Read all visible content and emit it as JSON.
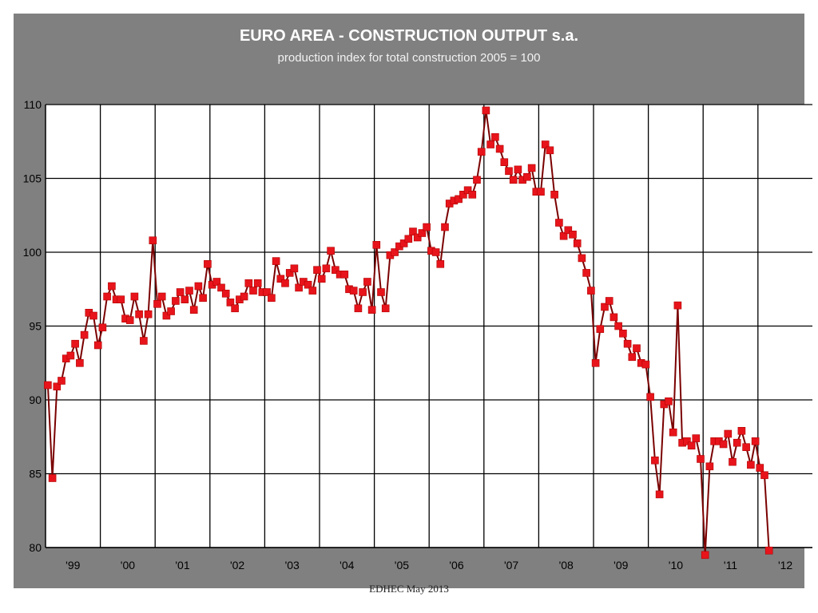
{
  "chart_data": {
    "type": "line",
    "title": "EURO AREA -  CONSTRUCTION OUTPUT  s.a.",
    "subtitle": "production index for total construction   2005 = 100",
    "xlabel": "",
    "ylabel": "",
    "ylim": [
      80,
      110
    ],
    "y_ticks": [
      80,
      85,
      90,
      95,
      100,
      105,
      110
    ],
    "x_tick_labels": [
      "'99",
      "'00",
      "'01",
      "'02",
      "'03",
      "'04",
      "'05",
      "'06",
      "'07",
      "'08",
      "'09",
      "'10",
      "'11",
      "'12"
    ],
    "x_range_months": [
      "1999-01",
      "2012-12"
    ],
    "grid": true,
    "line_color": "#7a0000",
    "marker_color": "#e8141b",
    "background_color": "#808080",
    "plot_area_color": "#ffffff",
    "series": [
      {
        "values": [
          91.0,
          84.7,
          90.9,
          91.3,
          92.8,
          93.0,
          93.8,
          92.5,
          94.4,
          95.9,
          95.7,
          93.7,
          94.9,
          97.0,
          97.7,
          96.8,
          96.8,
          95.5,
          95.4,
          97.0,
          95.8,
          94.0,
          95.8,
          100.8,
          96.5,
          97.0,
          95.7,
          96.0,
          96.7,
          97.3,
          96.8,
          97.4,
          96.1,
          97.7,
          96.9,
          99.2,
          97.8,
          98.0,
          97.6,
          97.2,
          96.6,
          96.2,
          96.8,
          97.0,
          97.9,
          97.4,
          97.9,
          97.3,
          97.3,
          96.9,
          99.4,
          98.2,
          97.9,
          98.6,
          98.9,
          97.6,
          98.0,
          97.8,
          97.4,
          98.8,
          98.2,
          98.9,
          100.1,
          98.8,
          98.5,
          98.5,
          97.5,
          97.4,
          96.2,
          97.3,
          98.0,
          96.1,
          100.5,
          97.3,
          96.2,
          99.8,
          100.0,
          100.4,
          100.6,
          100.9,
          101.4,
          101.0,
          101.3,
          101.7,
          100.1,
          100.0,
          99.2,
          101.7,
          103.3,
          103.5,
          103.6,
          103.9,
          104.2,
          103.9,
          104.9,
          106.8,
          109.6,
          107.3,
          107.8,
          107.0,
          106.1,
          105.5,
          104.9,
          105.6,
          104.9,
          105.1,
          105.7,
          104.1,
          104.1,
          107.3,
          106.9,
          103.9,
          102.0,
          101.1,
          101.5,
          101.2,
          100.6,
          99.6,
          98.6,
          97.4,
          92.5,
          94.8,
          96.3,
          96.7,
          95.6,
          95.0,
          94.5,
          93.8,
          92.9,
          93.5,
          92.5,
          92.4,
          90.2,
          85.9,
          83.6,
          89.7,
          89.9,
          87.8,
          96.4,
          87.1,
          87.2,
          86.9,
          87.4,
          86.0,
          79.5,
          85.5,
          87.2,
          87.2,
          87.0,
          87.7,
          85.8,
          87.1,
          87.9,
          86.8,
          85.6,
          87.2,
          85.4,
          84.9,
          79.8
        ]
      }
    ]
  },
  "footer": {
    "text": "EDHEC May 2013"
  }
}
